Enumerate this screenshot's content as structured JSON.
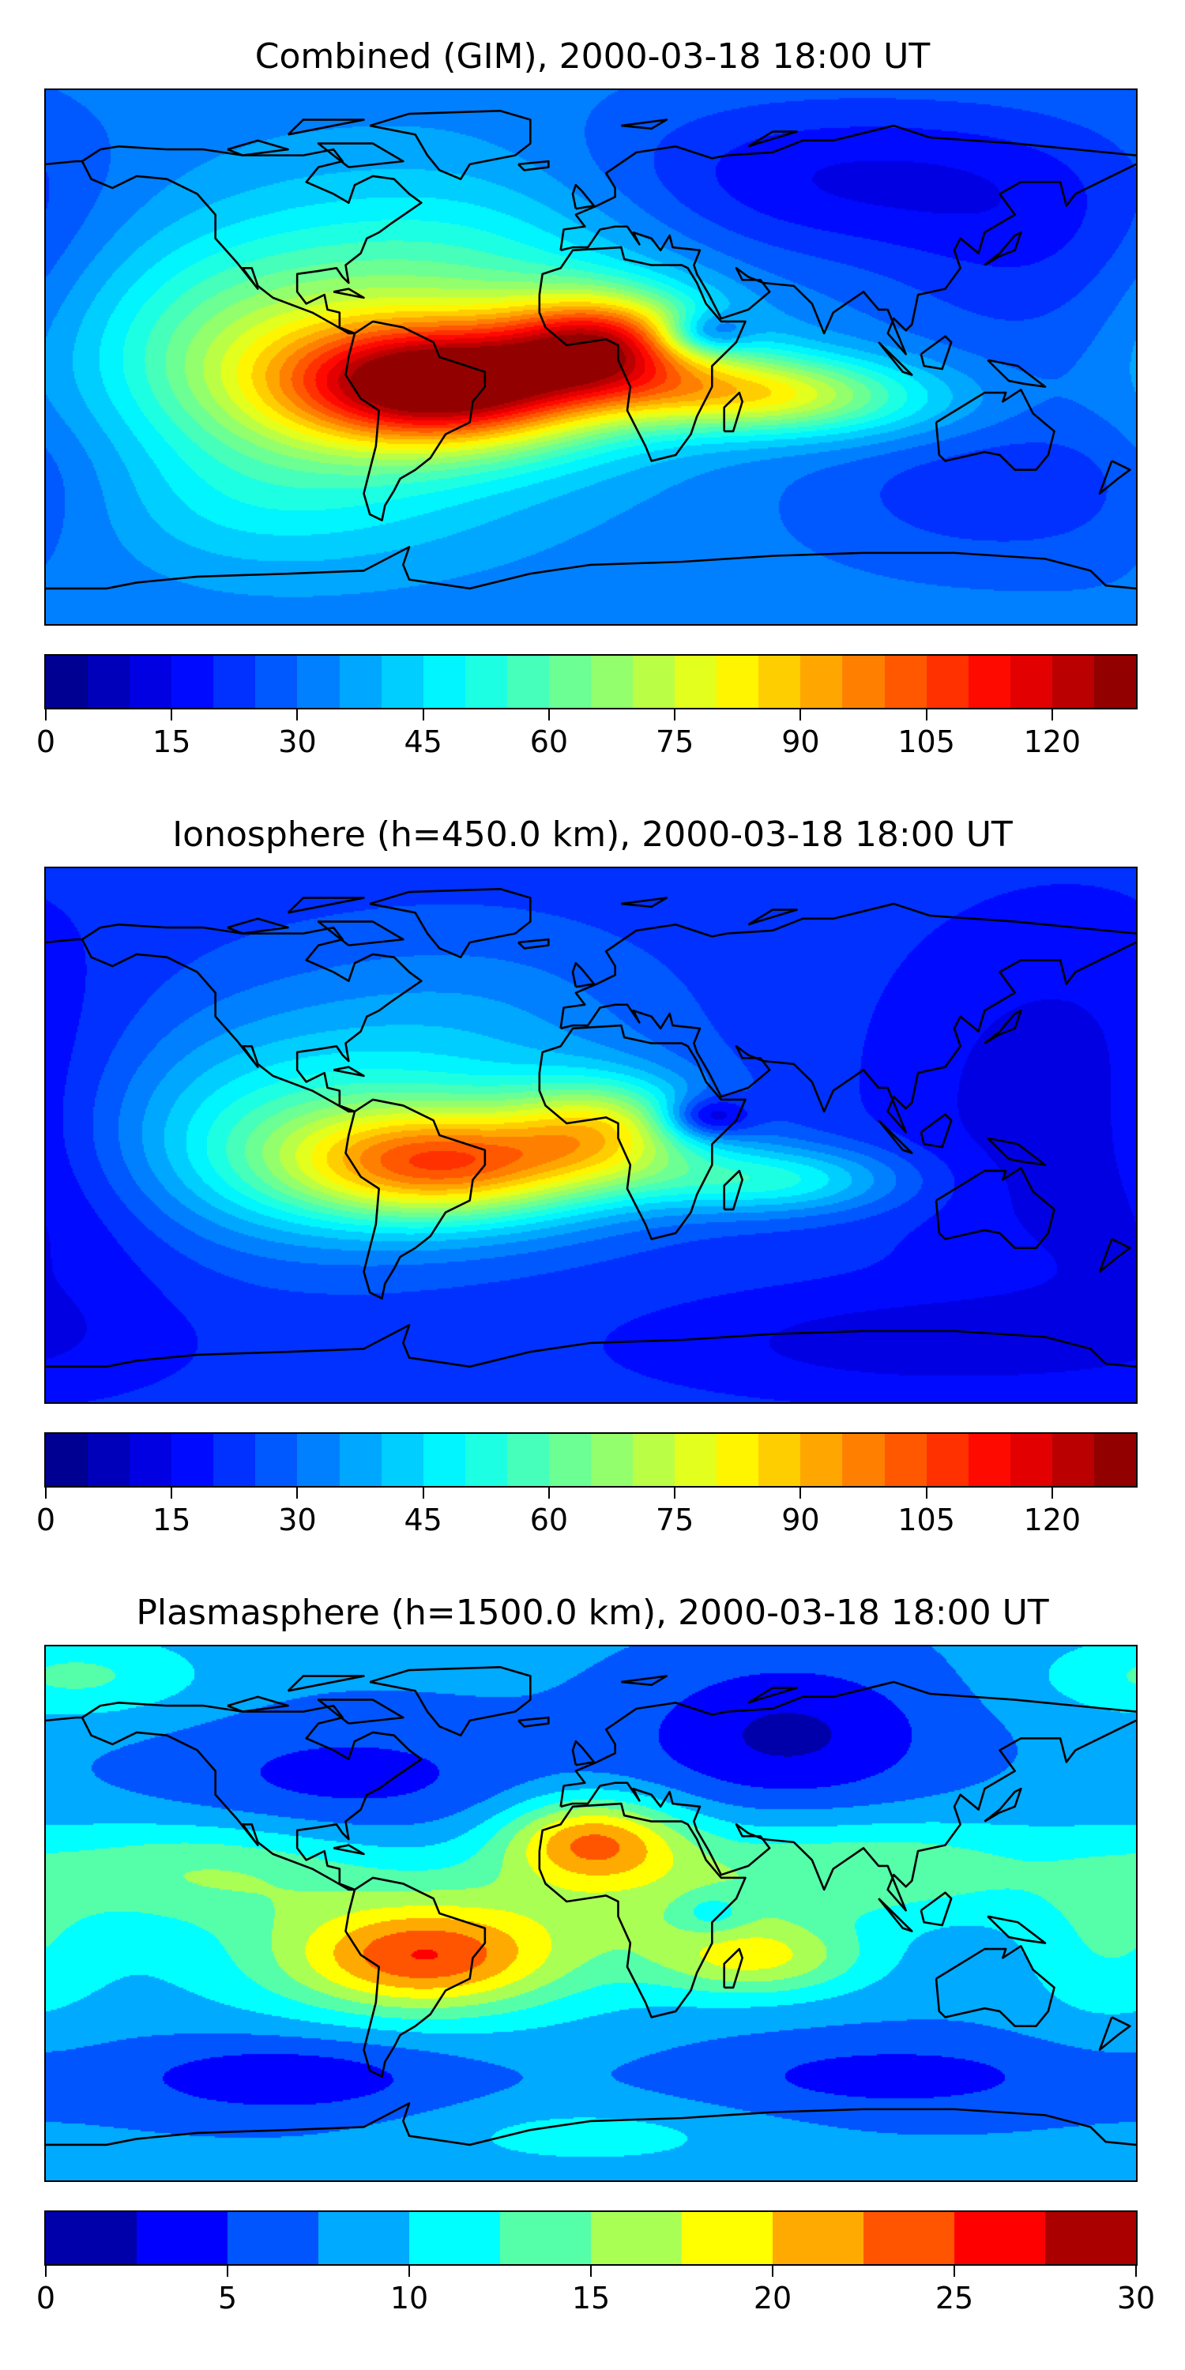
{
  "panels": [
    {
      "title": "Combined (GIM), 2000-03-18 18:00 UT",
      "colorbar": {
        "min": 0,
        "max": 130,
        "step": 5,
        "ticks": [
          "0",
          "15",
          "30",
          "45",
          "60",
          "75",
          "90",
          "105",
          "120"
        ]
      }
    },
    {
      "title": "Ionosphere  (h=450.0 km), 2000-03-18 18:00 UT",
      "colorbar": {
        "min": 0,
        "max": 130,
        "step": 5,
        "ticks": [
          "0",
          "15",
          "30",
          "45",
          "60",
          "75",
          "90",
          "105",
          "120"
        ]
      }
    },
    {
      "title": "Plasmasphere (h=1500.0 km), 2000-03-18 18:00 UT",
      "colorbar": {
        "min": 0,
        "max": 30,
        "step": 2.5,
        "ticks": [
          "0",
          "5",
          "10",
          "15",
          "20",
          "25",
          "30"
        ]
      }
    }
  ],
  "colormap": "jet",
  "coastline_color": "#000000"
}
